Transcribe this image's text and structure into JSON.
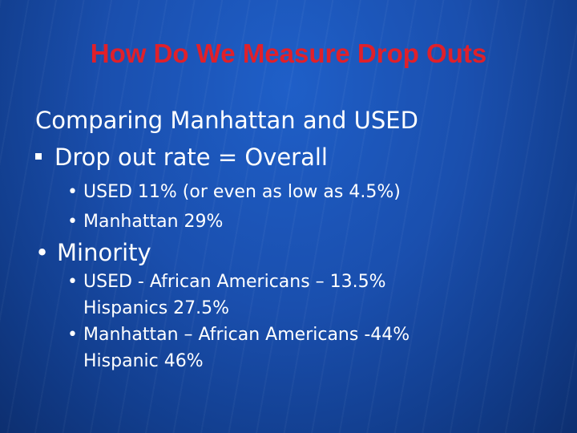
{
  "slide": {
    "title": "How Do We Measure Drop Outs",
    "lead": "Comparing Manhattan and USED",
    "level1": "Drop out rate = Overall",
    "overall": [
      "USED 11% (or even as low as 4.5%)",
      "Manhattan 29%"
    ],
    "minority": "Minority",
    "minority_items": [
      {
        "line1": "USED  - African Americans – 13.5%",
        "line2": "Hispanics 27.5%"
      },
      {
        "line1": "Manhattan – African Americans -44%",
        "line2": "Hispanic 46%"
      }
    ],
    "colors": {
      "title": "#e0202a",
      "background": "#1a4fae",
      "text": "#ffffff"
    }
  }
}
